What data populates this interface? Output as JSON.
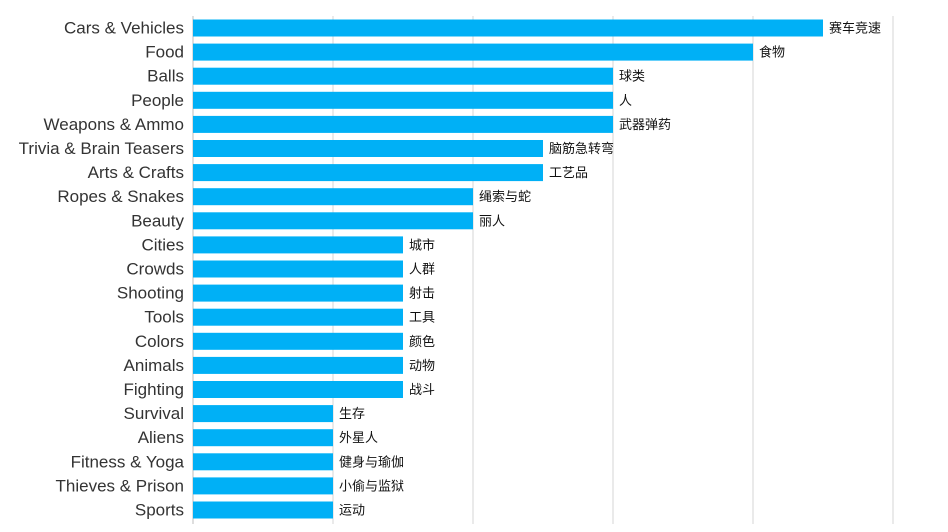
{
  "chart_data": {
    "type": "bar",
    "orientation": "horizontal",
    "categories": [
      "Cars & Vehicles",
      "Food",
      "Balls",
      "People",
      "Weapons & Ammo",
      "Trivia & Brain Teasers",
      "Arts & Crafts",
      "Ropes & Snakes",
      "Beauty",
      "Cities",
      "Crowds",
      "Shooting",
      "Tools",
      "Colors",
      "Animals",
      "Fighting",
      "Survival",
      "Aliens",
      "Fitness & Yoga",
      "Thieves & Prison",
      "Sports"
    ],
    "value_labels": [
      "赛车竞速",
      "食物",
      "球类",
      "人",
      "武器弹药",
      "脑筋急转弯",
      "工艺品",
      "绳索与蛇",
      "丽人",
      "城市",
      "人群",
      "射击",
      "工具",
      "颜色",
      "动物",
      "战斗",
      "生存",
      "外星人",
      "健身与瑜伽",
      "小偷与监狱",
      "运动"
    ],
    "values": [
      9,
      8,
      6,
      6,
      6,
      5,
      5,
      4,
      4,
      3,
      3,
      3,
      3,
      3,
      3,
      3,
      2,
      2,
      2,
      2,
      2
    ],
    "xlim": [
      0,
      10
    ],
    "grid": true,
    "bar_color": "#00b0f6",
    "title": "",
    "xlabel": "",
    "ylabel": ""
  }
}
